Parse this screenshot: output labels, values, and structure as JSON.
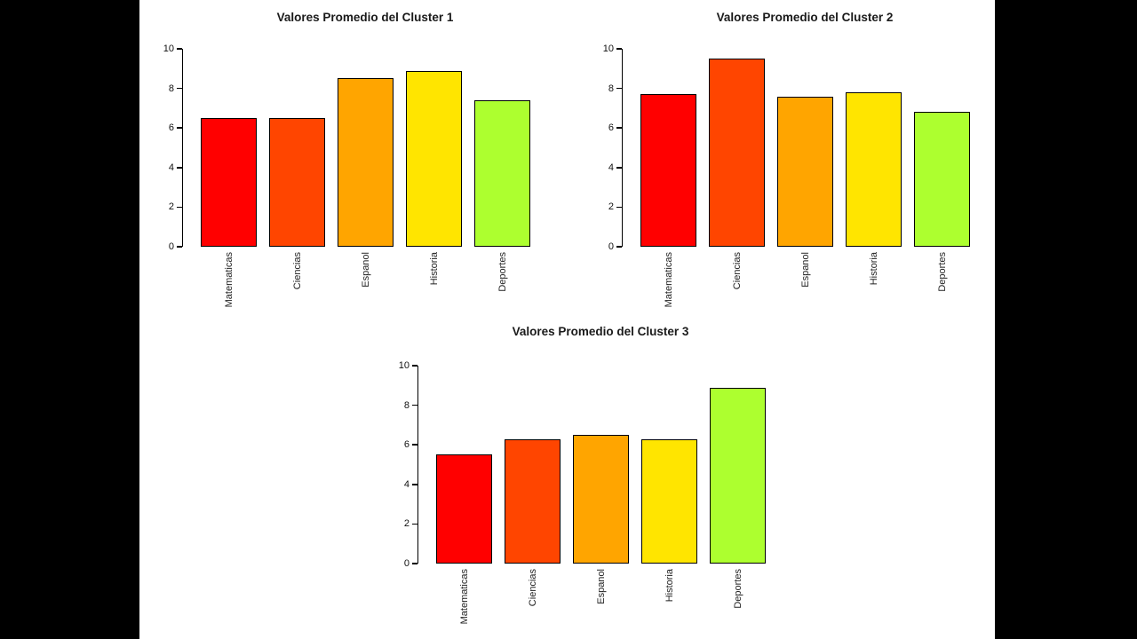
{
  "page": {
    "background_color": "#000000",
    "canvas_color": "#FFFFFF"
  },
  "chart_data": [
    {
      "type": "bar",
      "title": "Valores Promedio del Cluster 1",
      "categories": [
        "Matematicas",
        "Ciencias",
        "Espanol",
        "Historia",
        "Deportes"
      ],
      "values": [
        6.5,
        6.5,
        8.5,
        8.9,
        7.4
      ],
      "bar_colors": [
        "#FF0000",
        "#FF4500",
        "#FFA500",
        "#FFE500",
        "#ADFF2F"
      ],
      "xlabel": "",
      "ylabel": "",
      "ylim": [
        0,
        10
      ],
      "yticks": [
        0,
        2,
        4,
        6,
        8,
        10
      ],
      "grid": false,
      "legend": "none"
    },
    {
      "type": "bar",
      "title": "Valores Promedio del Cluster 2",
      "categories": [
        "Matematicas",
        "Ciencias",
        "Espanol",
        "Historia",
        "Deportes"
      ],
      "values": [
        7.7,
        9.5,
        7.6,
        7.8,
        6.8
      ],
      "bar_colors": [
        "#FF0000",
        "#FF4500",
        "#FFA500",
        "#FFE500",
        "#ADFF2F"
      ],
      "xlabel": "",
      "ylabel": "",
      "ylim": [
        0,
        10
      ],
      "yticks": [
        0,
        2,
        4,
        6,
        8,
        10
      ],
      "grid": false,
      "legend": "none"
    },
    {
      "type": "bar",
      "title": "Valores Promedio del Cluster 3",
      "categories": [
        "Matematicas",
        "Ciencias",
        "Espanol",
        "Historia",
        "Deportes"
      ],
      "values": [
        5.5,
        6.3,
        6.5,
        6.3,
        8.9
      ],
      "bar_colors": [
        "#FF0000",
        "#FF4500",
        "#FFA500",
        "#FFE500",
        "#ADFF2F"
      ],
      "xlabel": "",
      "ylabel": "",
      "ylim": [
        0,
        10
      ],
      "yticks": [
        0,
        2,
        4,
        6,
        8,
        10
      ],
      "grid": false,
      "legend": "none"
    }
  ]
}
